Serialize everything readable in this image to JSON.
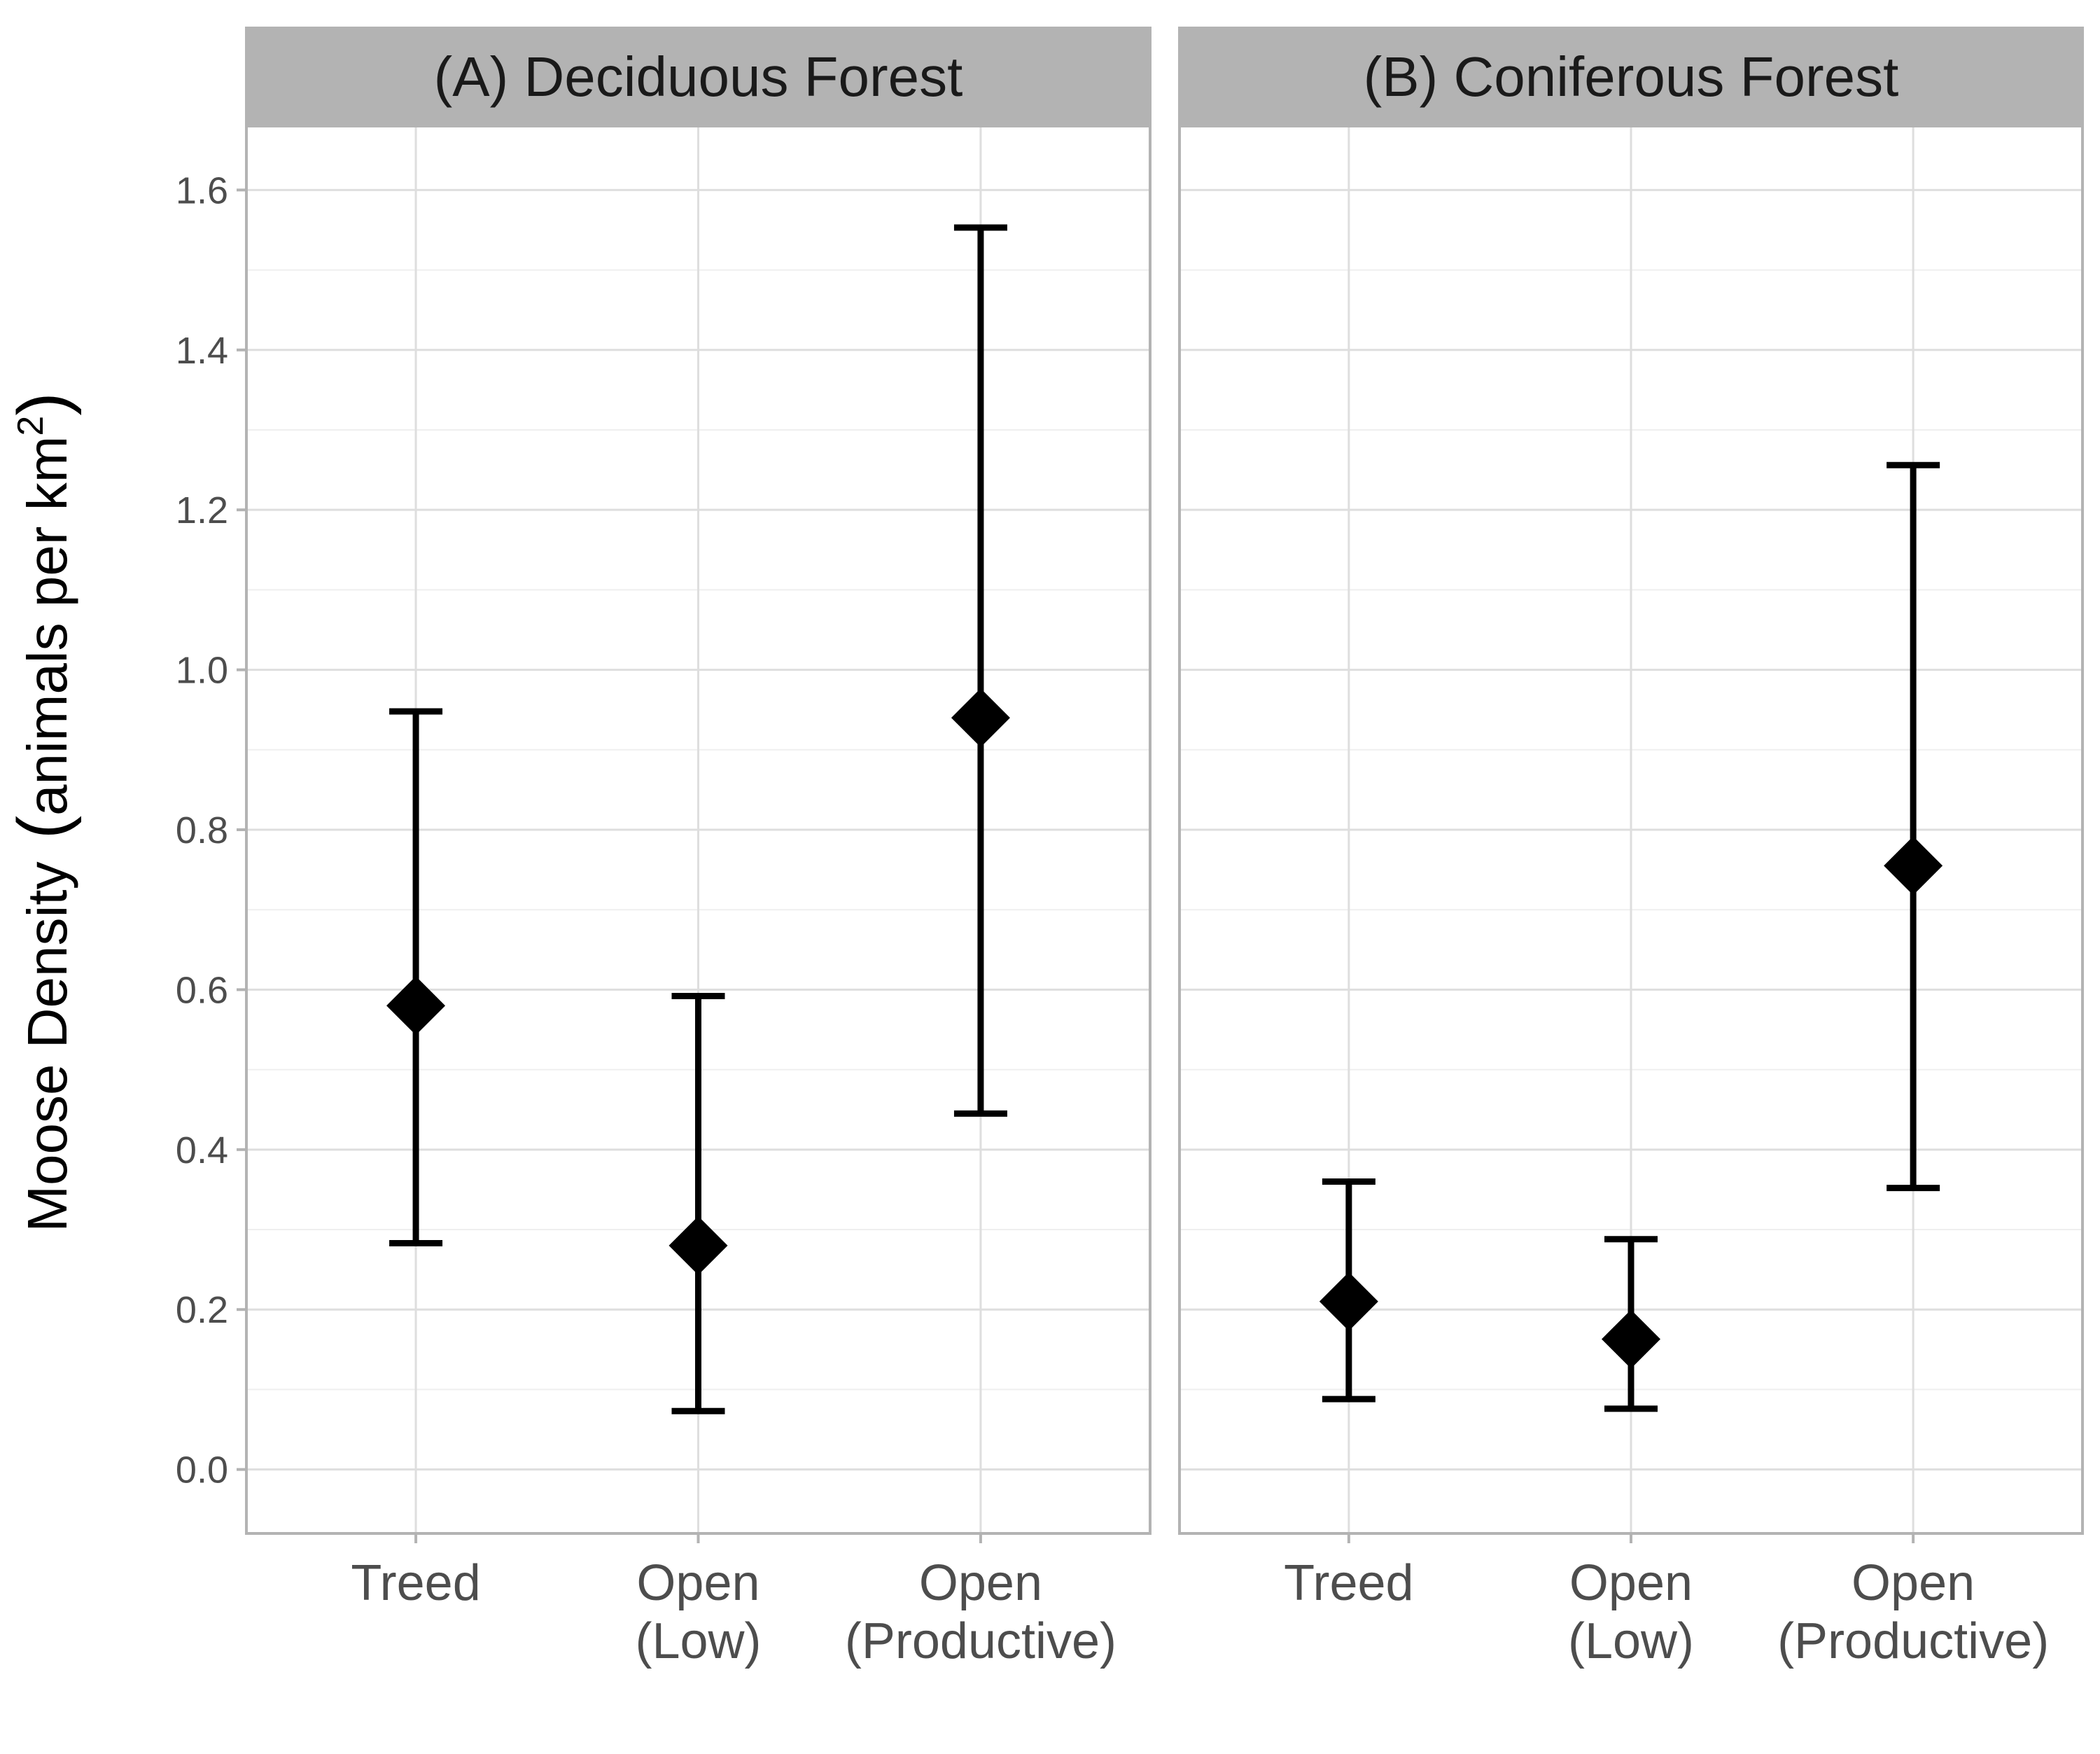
{
  "chart_data": {
    "type": "scatter",
    "ylabel": "Moose Density",
    "ylabel_units": "animals per km",
    "ylabel_units_superscript": "2",
    "ylim": [
      -0.08,
      1.68
    ],
    "yticks": [
      "0.0",
      "0.2",
      "0.4",
      "0.6",
      "0.8",
      "1.0",
      "1.2",
      "1.4",
      "1.6"
    ],
    "ytick_values": [
      0.0,
      0.2,
      0.4,
      0.6,
      0.8,
      1.0,
      1.2,
      1.4,
      1.6
    ],
    "grid": true,
    "marker": "diamond",
    "color": "#000000",
    "panels": [
      {
        "title": "(A) Deciduous Forest",
        "categories": [
          {
            "line1": "Treed",
            "line2": ""
          },
          {
            "line1": "Open",
            "line2": "(Low)"
          },
          {
            "line1": "Open",
            "line2": "(Productive)"
          }
        ],
        "estimate": [
          0.58,
          0.28,
          0.94
        ],
        "lower": [
          0.283,
          0.073,
          0.445
        ],
        "upper": [
          0.948,
          0.592,
          1.553
        ]
      },
      {
        "title": "(B) Coniferous Forest",
        "categories": [
          {
            "line1": "Treed",
            "line2": ""
          },
          {
            "line1": "Open",
            "line2": "(Low)"
          },
          {
            "line1": "Open",
            "line2": "(Productive)"
          }
        ],
        "estimate": [
          0.21,
          0.163,
          0.755
        ],
        "lower": [
          0.088,
          0.076,
          0.352
        ],
        "upper": [
          0.36,
          0.288,
          1.256
        ]
      }
    ]
  }
}
